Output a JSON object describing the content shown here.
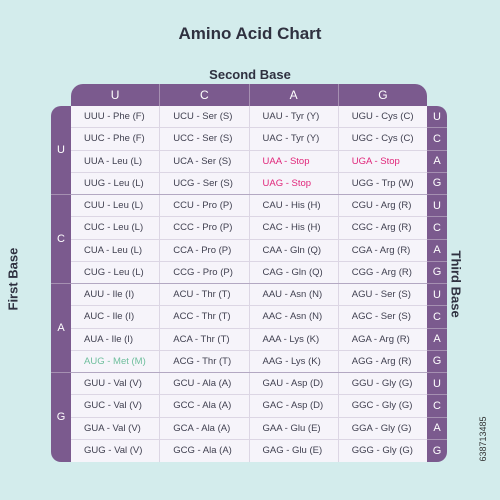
{
  "title": "Amino Acid Chart",
  "second_base_label": "Second Base",
  "first_base_label": "First Base",
  "third_base_label": "Third Base",
  "second_bases": [
    "U",
    "C",
    "A",
    "G"
  ],
  "first_bases": [
    "U",
    "C",
    "A",
    "G"
  ],
  "third_bases": [
    "U",
    "C",
    "A",
    "G",
    "U",
    "C",
    "A",
    "G",
    "U",
    "C",
    "A",
    "G",
    "U",
    "C",
    "A",
    "G"
  ],
  "watermark": "638713485",
  "colors": {
    "header_purple": "#7b5a8e",
    "stop_pink": "#e0267a",
    "start_green": "#6fbf9d",
    "background": "#d3ecec"
  },
  "rows": [
    [
      {
        "t": "UUU - Phe (F)"
      },
      {
        "t": "UCU - Ser (S)"
      },
      {
        "t": "UAU - Tyr (Y)"
      },
      {
        "t": "UGU - Cys (C)"
      }
    ],
    [
      {
        "t": "UUC - Phe (F)"
      },
      {
        "t": "UCC - Ser (S)"
      },
      {
        "t": "UAC - Tyr (Y)"
      },
      {
        "t": "UGC - Cys (C)"
      }
    ],
    [
      {
        "t": "UUA - Leu (L)"
      },
      {
        "t": "UCA - Ser (S)"
      },
      {
        "t": "UAA - Stop",
        "k": "stop"
      },
      {
        "t": "UGA - Stop",
        "k": "stop"
      }
    ],
    [
      {
        "t": "UUG - Leu (L)"
      },
      {
        "t": "UCG - Ser (S)"
      },
      {
        "t": "UAG - Stop",
        "k": "stop"
      },
      {
        "t": "UGG - Trp (W)"
      }
    ],
    [
      {
        "t": "CUU - Leu (L)"
      },
      {
        "t": "CCU - Pro (P)"
      },
      {
        "t": "CAU - His (H)"
      },
      {
        "t": "CGU - Arg (R)"
      }
    ],
    [
      {
        "t": "CUC - Leu (L)"
      },
      {
        "t": "CCC - Pro (P)"
      },
      {
        "t": "CAC - His (H)"
      },
      {
        "t": "CGC - Arg (R)"
      }
    ],
    [
      {
        "t": "CUA - Leu (L)"
      },
      {
        "t": "CCA - Pro (P)"
      },
      {
        "t": "CAA - Gln (Q)"
      },
      {
        "t": "CGA - Arg (R)"
      }
    ],
    [
      {
        "t": "CUG - Leu (L)"
      },
      {
        "t": "CCG - Pro (P)"
      },
      {
        "t": "CAG - Gln (Q)"
      },
      {
        "t": "CGG - Arg (R)"
      }
    ],
    [
      {
        "t": "AUU - Ile (I)"
      },
      {
        "t": "ACU - Thr (T)"
      },
      {
        "t": "AAU - Asn (N)"
      },
      {
        "t": "AGU - Ser (S)"
      }
    ],
    [
      {
        "t": "AUC - Ile (I)"
      },
      {
        "t": "ACC - Thr (T)"
      },
      {
        "t": "AAC - Asn (N)"
      },
      {
        "t": "AGC - Ser (S)"
      }
    ],
    [
      {
        "t": "AUA - Ile (I)"
      },
      {
        "t": "ACA - Thr (T)"
      },
      {
        "t": "AAA - Lys (K)"
      },
      {
        "t": "AGA - Arg (R)"
      }
    ],
    [
      {
        "t": "AUG - Met (M)",
        "k": "start"
      },
      {
        "t": "ACG - Thr (T)"
      },
      {
        "t": "AAG - Lys (K)"
      },
      {
        "t": "AGG - Arg (R)"
      }
    ],
    [
      {
        "t": "GUU - Val (V)"
      },
      {
        "t": "GCU - Ala (A)"
      },
      {
        "t": "GAU - Asp (D)"
      },
      {
        "t": "GGU - Gly (G)"
      }
    ],
    [
      {
        "t": "GUC - Val (V)"
      },
      {
        "t": "GCC - Ala (A)"
      },
      {
        "t": "GAC - Asp (D)"
      },
      {
        "t": "GGC - Gly (G)"
      }
    ],
    [
      {
        "t": "GUA - Val (V)"
      },
      {
        "t": "GCA - Ala (A)"
      },
      {
        "t": "GAA - Glu (E)"
      },
      {
        "t": "GGA - Gly (G)"
      }
    ],
    [
      {
        "t": "GUG - Val (V)"
      },
      {
        "t": "GCG - Ala (A)"
      },
      {
        "t": "GAG - Glu (E)"
      },
      {
        "t": "GGG - Gly (G)"
      }
    ]
  ]
}
